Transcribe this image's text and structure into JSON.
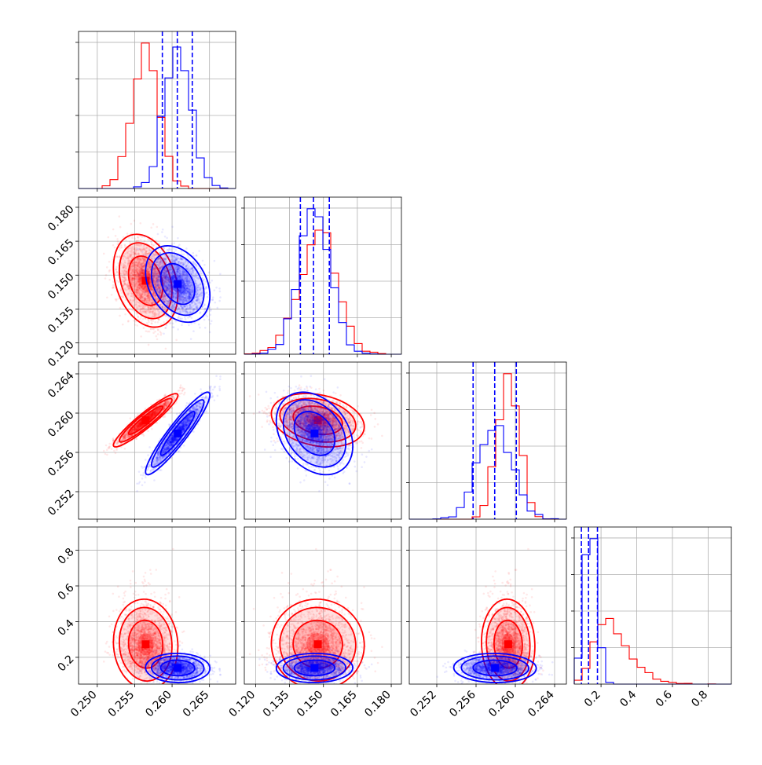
{
  "chart_data": {
    "type": "corner",
    "colors": {
      "red": "#ff0000",
      "blue": "#0000ff"
    },
    "grid": true,
    "parameters": [
      {
        "key": "p1",
        "range": [
          0.2475,
          0.2685
        ],
        "ticks": [
          0.25,
          0.255,
          0.26,
          0.265
        ],
        "tick_labels": [
          "0.250",
          "0.255",
          "0.260",
          "0.265"
        ]
      },
      {
        "key": "p2",
        "range": [
          0.115,
          0.1845
        ],
        "ticks": [
          0.12,
          0.135,
          0.15,
          0.165,
          0.18
        ],
        "tick_labels": [
          "0.120",
          "0.135",
          "0.150",
          "0.165",
          "0.180"
        ]
      },
      {
        "key": "p3",
        "range": [
          0.2492,
          0.2652
        ],
        "ticks": [
          0.252,
          0.256,
          0.26,
          0.264
        ],
        "tick_labels": [
          "0.252",
          "0.256",
          "0.260",
          "0.264"
        ]
      },
      {
        "key": "p4",
        "range": [
          0.05,
          0.93
        ],
        "ticks": [
          0.2,
          0.4,
          0.6,
          0.8
        ],
        "tick_labels": [
          "0.2",
          "0.4",
          "0.6",
          "0.8"
        ]
      }
    ],
    "series": [
      {
        "color": "red",
        "mean": [
          0.2565,
          0.1475,
          0.2593,
          0.26
        ],
        "std": [
          0.00175,
          0.0085,
          0.0011,
          0.09
        ],
        "corr12": -0.3,
        "corr13": 0.93
      },
      {
        "color": "blue",
        "mean": [
          0.2608,
          0.146,
          0.258,
          0.14
        ],
        "std": [
          0.00175,
          0.0068,
          0.0017,
          0.033
        ],
        "corr12": -0.3,
        "corr13": 0.93
      }
    ],
    "quantile_lines": [
      [
        0.2587,
        0.2607,
        0.2627
      ],
      [
        0.1398,
        0.1456,
        0.1526
      ],
      [
        0.2557,
        0.2579,
        0.2601
      ],
      [
        0.09,
        0.13,
        0.18
      ]
    ]
  }
}
